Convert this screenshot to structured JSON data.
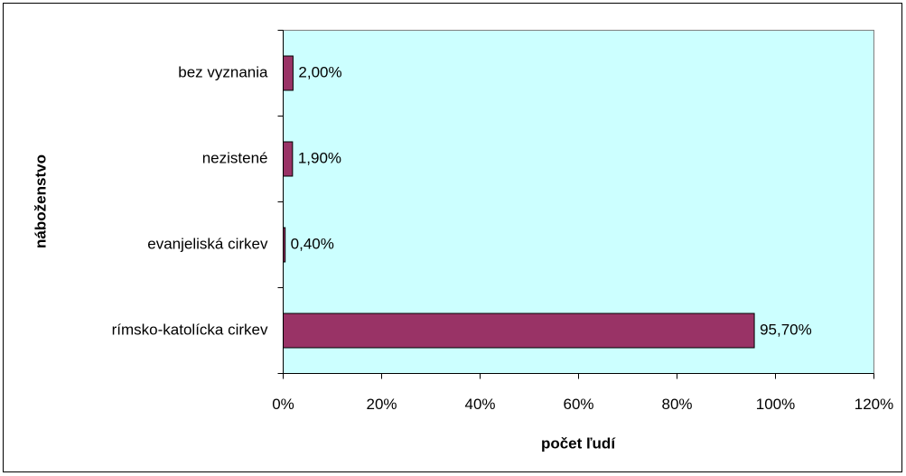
{
  "chart_data": {
    "type": "bar",
    "orientation": "horizontal",
    "x_label": "počet ľudí",
    "y_label": "náboženstvo",
    "categories": [
      "bez vyznania",
      "nezistené",
      "evanjeliská cirkev",
      "rímsko-katolícka cirkev"
    ],
    "values": [
      2.0,
      1.9,
      0.4,
      95.7
    ],
    "value_labels": [
      "2,00%",
      "1,90%",
      "0,40%",
      "95,70%"
    ],
    "color": "#993366",
    "xlim": [
      0,
      120
    ],
    "xticks": [
      {
        "value": 0,
        "label": "0%"
      },
      {
        "value": 20,
        "label": "20%"
      },
      {
        "value": 40,
        "label": "40%"
      },
      {
        "value": 60,
        "label": "60%"
      },
      {
        "value": 80,
        "label": "80%"
      },
      {
        "value": 100,
        "label": "100%"
      },
      {
        "value": 120,
        "label": "120%"
      }
    ],
    "grid": false
  }
}
